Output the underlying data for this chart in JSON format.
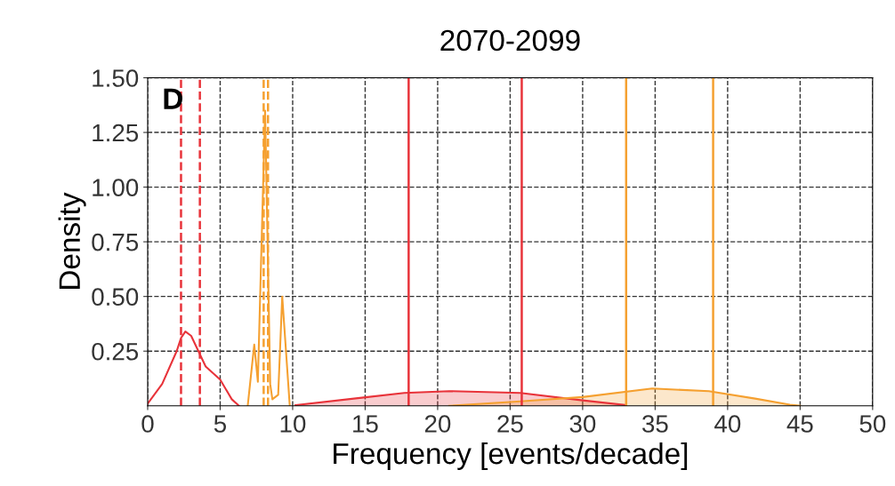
{
  "chart_data": {
    "type": "line",
    "title": "2070-2099",
    "xlabel": "Frequency [events/decade]",
    "ylabel": "Density",
    "annotations": [
      "D"
    ],
    "xlim": [
      0,
      50
    ],
    "ylim": [
      0,
      1.5
    ],
    "xticks": [
      0,
      5,
      10,
      15,
      20,
      25,
      30,
      35,
      40,
      45,
      50
    ],
    "yticks": [
      {
        "value": 0.25,
        "label": "0.25"
      },
      {
        "value": 0.5,
        "label": "0.50"
      },
      {
        "value": 0.75,
        "label": "0.75"
      },
      {
        "value": 1.0,
        "label": "1.00"
      },
      {
        "value": 1.25,
        "label": "1.25"
      },
      {
        "value": 1.5,
        "label": "1.50"
      }
    ],
    "grid": true,
    "legend": false,
    "series": [
      {
        "color": "#e8333a",
        "x": [
          0,
          1,
          2,
          2.3,
          2.6,
          3,
          3.5,
          4,
          5,
          5.8,
          6.3
        ],
        "values": [
          0.01,
          0.1,
          0.25,
          0.31,
          0.34,
          0.32,
          0.25,
          0.18,
          0.12,
          0.03,
          0
        ]
      },
      {
        "color": "#f5a030",
        "x": [
          6.9,
          7.35,
          7.6,
          8.1,
          8.45,
          8.6,
          9.0,
          9.28,
          9.8
        ],
        "values": [
          0,
          0.28,
          0.11,
          1.35,
          0.1,
          0.03,
          0.05,
          0.5,
          0
        ]
      },
      {
        "type": "area",
        "color": "#e8333a",
        "x": [
          10.2,
          14.9,
          17.7,
          20.8,
          25.7,
          30,
          33
        ],
        "values": [
          0.003,
          0.038,
          0.059,
          0.067,
          0.059,
          0.025,
          0.003
        ]
      },
      {
        "type": "area",
        "color": "#f5a030",
        "x": [
          20.8,
          25.7,
          30,
          34.8,
          38.7,
          41.9,
          44.3,
          45
        ],
        "values": [
          0,
          0.02,
          0.04,
          0.079,
          0.067,
          0.033,
          0.005,
          0
        ]
      }
    ],
    "ref_lines": [
      {
        "axis": "x",
        "value": 2.3,
        "color": "#e8333a",
        "line_style": "dashed"
      },
      {
        "axis": "x",
        "value": 3.6,
        "color": "#e8333a",
        "line_style": "dashed"
      },
      {
        "axis": "x",
        "value": 8.0,
        "color": "#f5a030",
        "line_style": "dashed"
      },
      {
        "axis": "x",
        "value": 8.3,
        "color": "#f5a030",
        "line_style": "dashed"
      },
      {
        "axis": "x",
        "value": 18,
        "color": "#e8333a",
        "line_style": "solid"
      },
      {
        "axis": "x",
        "value": 25.8,
        "color": "#e8333a",
        "line_style": "solid"
      },
      {
        "axis": "x",
        "value": 33,
        "color": "#f5a030",
        "line_style": "solid"
      },
      {
        "axis": "x",
        "value": 39,
        "color": "#f5a030",
        "line_style": "solid"
      }
    ]
  }
}
